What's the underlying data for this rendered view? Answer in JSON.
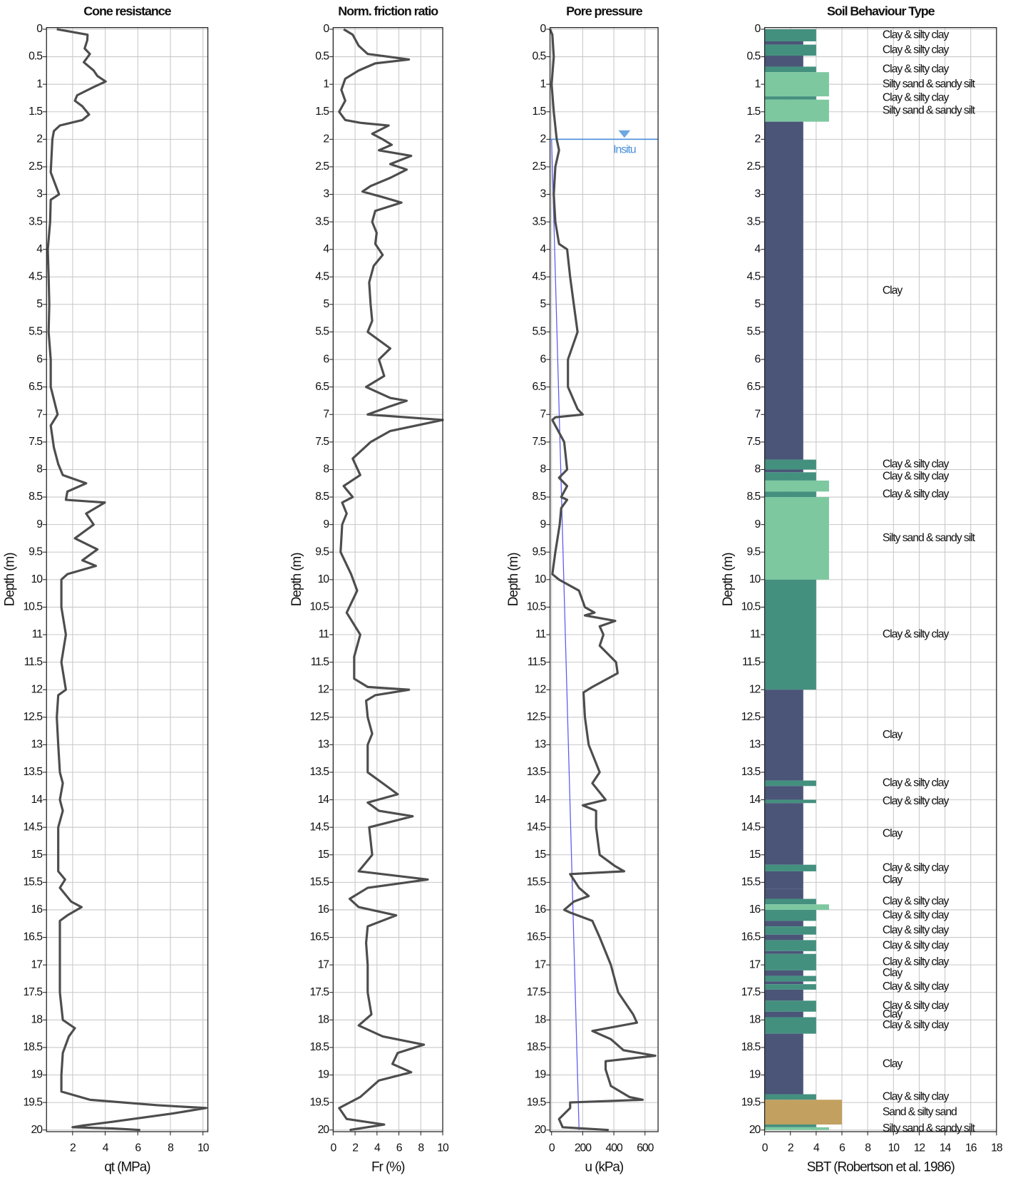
{
  "chart_data": [
    {
      "type": "line",
      "title": "Cone resistance",
      "xlabel": "qt (MPa)",
      "ylabel": "Depth (m)",
      "xlim": [
        0.4,
        10.3
      ],
      "xticks": [
        2,
        4,
        6,
        8,
        10
      ],
      "ylim": [
        -0.03,
        20.03
      ],
      "y_inverted": true,
      "yticks": [
        0,
        0.5,
        1,
        1.5,
        2,
        2.5,
        3,
        3.5,
        4,
        4.5,
        5,
        5.5,
        6,
        6.5,
        7,
        7.5,
        8,
        8.5,
        9,
        9.5,
        10,
        10.5,
        11,
        11.5,
        12,
        12.5,
        13,
        13.5,
        14,
        14.5,
        15,
        15.5,
        16,
        16.5,
        17,
        17.5,
        18,
        18.5,
        19,
        19.5,
        20
      ],
      "grid": true,
      "color": "#4d4d4d",
      "depth": [
        0,
        0.1,
        0.2,
        0.35,
        0.45,
        0.6,
        0.75,
        0.85,
        0.95,
        1.05,
        1.2,
        1.3,
        1.4,
        1.55,
        1.65,
        1.75,
        1.85,
        2.0,
        2.3,
        2.6,
        3.0,
        3.1,
        3.5,
        4.0,
        4.5,
        5.0,
        5.5,
        6.0,
        6.5,
        7.0,
        7.2,
        7.6,
        7.9,
        8.1,
        8.25,
        8.4,
        8.55,
        8.6,
        8.8,
        9.0,
        9.25,
        9.45,
        9.65,
        9.75,
        9.9,
        10.0,
        10.5,
        11.0,
        11.5,
        12.0,
        12.1,
        12.5,
        13.0,
        13.5,
        13.7,
        14.0,
        14.2,
        14.5,
        15.0,
        15.3,
        15.45,
        15.6,
        15.85,
        15.95,
        16.1,
        16.2,
        16.5,
        17.0,
        17.5,
        18.0,
        18.15,
        18.3,
        18.6,
        19.0,
        19.3,
        19.45,
        19.55,
        19.6,
        19.7,
        19.85,
        19.92,
        19.95,
        19.97,
        20.0
      ],
      "values": [
        1.03,
        2.92,
        2.9,
        2.74,
        3.06,
        2.69,
        3.29,
        3.52,
        4.03,
        3.29,
        2.28,
        2.14,
        2.6,
        3.01,
        2.6,
        1.22,
        0.85,
        0.76,
        0.71,
        0.66,
        1.17,
        0.66,
        0.62,
        0.48,
        0.53,
        0.57,
        0.53,
        0.66,
        0.66,
        1.08,
        0.66,
        0.85,
        1.12,
        1.4,
        2.83,
        1.68,
        1.59,
        3.98,
        2.83,
        3.29,
        2.14,
        3.52,
        2.6,
        3.43,
        1.68,
        1.31,
        1.31,
        1.59,
        1.31,
        1.59,
        1.12,
        1.03,
        1.12,
        1.22,
        1.4,
        1.22,
        1.4,
        1.12,
        1.12,
        1.12,
        1.54,
        1.22,
        1.91,
        2.55,
        1.68,
        1.22,
        1.22,
        1.22,
        1.22,
        1.4,
        2.14,
        1.77,
        1.4,
        1.31,
        1.31,
        3.06,
        7.21,
        10.2,
        8.13,
        4.44,
        2.6,
        2.0,
        4.44,
        6.15
      ]
    },
    {
      "type": "line",
      "title": "Norm. friction ratio",
      "xlabel": "Fr (%)",
      "ylabel": "Depth (m)",
      "xlim": [
        0,
        10
      ],
      "xticks": [
        0,
        2,
        4,
        6,
        8,
        10
      ],
      "ylim": [
        -0.03,
        20.03
      ],
      "y_inverted": true,
      "yticks": [
        0,
        0.5,
        1,
        1.5,
        2,
        2.5,
        3,
        3.5,
        4,
        4.5,
        5,
        5.5,
        6,
        6.5,
        7,
        7.5,
        8,
        8.5,
        9,
        9.5,
        10,
        10.5,
        11,
        11.5,
        12,
        12.5,
        13,
        13.5,
        14,
        14.5,
        15,
        15.5,
        16,
        16.5,
        17,
        17.5,
        18,
        18.5,
        19,
        19.5,
        20
      ],
      "grid": true,
      "color": "#4d4d4d",
      "depth": [
        0,
        0.1,
        0.3,
        0.45,
        0.5,
        0.55,
        0.62,
        0.75,
        0.9,
        1.1,
        1.3,
        1.5,
        1.65,
        1.7,
        1.75,
        1.9,
        2.0,
        2.1,
        2.2,
        2.3,
        2.45,
        2.55,
        2.7,
        2.85,
        2.95,
        3.05,
        3.15,
        3.3,
        3.5,
        3.7,
        3.9,
        4.1,
        4.3,
        4.6,
        5.0,
        5.3,
        5.5,
        5.8,
        6.0,
        6.3,
        6.5,
        6.7,
        6.75,
        6.85,
        7.0,
        7.03,
        7.1,
        7.3,
        7.5,
        7.8,
        8.1,
        8.3,
        8.5,
        8.6,
        8.8,
        9.0,
        9.5,
        9.9,
        10.2,
        10.6,
        11.0,
        11.4,
        11.8,
        11.95,
        12.0,
        12.1,
        12.2,
        12.5,
        12.8,
        13.0,
        13.5,
        13.7,
        13.9,
        14.05,
        14.2,
        14.3,
        14.5,
        15.0,
        15.3,
        15.45,
        15.6,
        15.8,
        15.95,
        16.1,
        16.3,
        16.6,
        17.0,
        17.5,
        17.9,
        18.1,
        18.3,
        18.45,
        18.6,
        18.8,
        18.95,
        19.1,
        19.4,
        19.6,
        19.8,
        19.9,
        20.0
      ],
      "values": [
        0.96,
        1.78,
        2.33,
        3.15,
        5.07,
        6.92,
        3.84,
        2.33,
        1.1,
        0.75,
        1.1,
        0.55,
        1.1,
        2.47,
        5.07,
        3.56,
        4.52,
        5.34,
        4.18,
        7.12,
        5.21,
        6.71,
        5.21,
        3.42,
        2.67,
        4.52,
        6.23,
        3.84,
        3.56,
        3.97,
        3.84,
        4.52,
        3.7,
        3.29,
        3.42,
        3.56,
        3.15,
        5.21,
        4.18,
        4.66,
        3.01,
        5.21,
        6.71,
        5.21,
        3.15,
        5.21,
        10,
        5.21,
        3.42,
        1.78,
        2.47,
        0.96,
        1.78,
        0.82,
        1.23,
        0.82,
        0.68,
        1.64,
        2.19,
        1.23,
        2.47,
        1.92,
        1.92,
        3.15,
        6.92,
        3.84,
        3.01,
        3.15,
        3.56,
        3.15,
        3.15,
        4.52,
        5.89,
        3.15,
        4.18,
        7.26,
        3.29,
        3.56,
        2.33,
        8.63,
        3.15,
        1.51,
        2.33,
        5.75,
        3.15,
        3.01,
        3.15,
        3.15,
        3.49,
        2.33,
        4.52,
        8.29,
        5.89,
        5.41,
        7.12,
        4.18,
        2.47,
        0.55,
        1.23,
        4.66,
        1.51
      ]
    },
    {
      "type": "line",
      "title": "Pore pressure",
      "xlabel": "u (kPa)",
      "ylabel": "Depth (m)",
      "xlim": [
        -10,
        684
      ],
      "xticks": [
        0,
        200,
        400,
        600
      ],
      "ylim": [
        -0.03,
        20.03
      ],
      "y_inverted": true,
      "yticks": [
        0,
        0.5,
        1,
        1.5,
        2,
        2.5,
        3,
        3.5,
        4,
        4.5,
        5,
        5.5,
        6,
        6.5,
        7,
        7.5,
        8,
        8.5,
        9,
        9.5,
        10,
        10.5,
        11,
        11.5,
        12,
        12.5,
        13,
        13.5,
        14,
        14.5,
        15,
        15.5,
        16,
        16.5,
        17,
        17.5,
        18,
        18.5,
        19,
        19.5,
        20
      ],
      "grid": true,
      "color": "#4d4d4d",
      "depth": [
        0,
        0.1,
        0.5,
        1.0,
        1.5,
        2.0,
        2.2,
        2.5,
        3.0,
        3.5,
        3.9,
        4.0,
        4.5,
        5.0,
        5.5,
        6.0,
        6.5,
        6.9,
        7.0,
        7.05,
        7.1,
        7.5,
        8.0,
        8.15,
        8.3,
        8.5,
        8.55,
        8.7,
        9.0,
        9.5,
        9.9,
        10.0,
        10.2,
        10.5,
        10.6,
        10.65,
        10.75,
        10.85,
        11.0,
        11.2,
        11.5,
        11.7,
        11.95,
        12.05,
        12.5,
        13.0,
        13.5,
        13.7,
        14.0,
        14.1,
        14.2,
        14.5,
        15.0,
        15.2,
        15.3,
        15.35,
        15.6,
        15.75,
        15.85,
        16.0,
        16.05,
        16.2,
        16.5,
        17.0,
        17.5,
        17.9,
        18.05,
        18.2,
        18.35,
        18.55,
        18.65,
        18.75,
        18.9,
        19.2,
        19.4,
        19.45,
        19.5,
        19.6,
        19.8,
        19.95,
        20.0
      ],
      "values": [
        -10,
        5,
        14,
        0,
        14,
        33,
        48,
        24,
        14,
        24,
        48,
        100,
        119,
        143,
        167,
        105,
        105,
        167,
        200,
        24,
        5,
        81,
        100,
        48,
        100,
        62,
        100,
        62,
        52,
        24,
        5,
        48,
        176,
        214,
        276,
        214,
        409,
        309,
        333,
        309,
        414,
        424,
        262,
        205,
        214,
        238,
        309,
        262,
        347,
        200,
        286,
        286,
        309,
        405,
        466,
        119,
        176,
        238,
        143,
        81,
        119,
        262,
        309,
        381,
        428,
        524,
        548,
        262,
        381,
        462,
        666,
        347,
        347,
        381,
        500,
        585,
        119,
        119,
        48,
        71,
        367
      ],
      "hydrostatic": {
        "depth": [
          2,
          20
        ],
        "values": [
          0,
          176.6
        ],
        "color": "#5b5bf0"
      },
      "water_table": {
        "depth": 2,
        "label": "Insitu",
        "color": "#4a90d9"
      }
    },
    {
      "type": "bar",
      "title": "Soil Behaviour Type",
      "xlabel": "SBT (Robertson et al. 1986)",
      "ylabel": "Depth (m)",
      "xlim": [
        0,
        18
      ],
      "xticks": [
        0,
        2,
        4,
        6,
        8,
        10,
        12,
        14,
        16,
        18
      ],
      "ylim": [
        -0.03,
        20.03
      ],
      "y_inverted": true,
      "yticks": [
        0,
        0.5,
        1,
        1.5,
        2,
        2.5,
        3,
        3.5,
        4,
        4.5,
        5,
        5.5,
        6,
        6.5,
        7,
        7.5,
        8,
        8.5,
        9,
        9.5,
        10,
        10.5,
        11,
        11.5,
        12,
        12.5,
        13,
        13.5,
        14,
        14.5,
        15,
        15.5,
        16,
        16.5,
        17,
        17.5,
        18,
        18.5,
        19,
        19.5,
        20
      ],
      "grid": true,
      "zone_colors": {
        "3": "#4a5578",
        "4": "#44907f",
        "5": "#7ec8a0",
        "6": "#c2a060"
      },
      "layers": {
        "top": [
          0,
          0.22,
          0.28,
          0.48,
          0.68,
          0.78,
          1.22,
          1.28,
          1.68,
          7.82,
          8.0,
          8.05,
          8.2,
          8.4,
          8.5,
          10.0,
          12.0,
          13.65,
          13.75,
          14.0,
          14.06,
          15.18,
          15.3,
          15.62,
          15.8,
          15.9,
          16.0,
          16.2,
          16.3,
          16.45,
          16.55,
          16.75,
          16.8,
          17.1,
          17.2,
          17.3,
          17.35,
          17.45,
          17.65,
          17.85,
          17.95,
          18.25,
          19.35,
          19.45,
          19.9,
          19.95
        ],
        "bottom": [
          0.22,
          0.28,
          0.48,
          0.68,
          0.78,
          1.22,
          1.28,
          1.68,
          7.82,
          8.0,
          8.05,
          8.2,
          8.4,
          8.5,
          10.0,
          12.0,
          13.65,
          13.75,
          14.0,
          14.06,
          15.18,
          15.3,
          15.62,
          15.8,
          15.9,
          16.0,
          16.2,
          16.3,
          16.45,
          16.55,
          16.75,
          16.8,
          17.1,
          17.2,
          17.3,
          17.35,
          17.45,
          17.65,
          17.85,
          17.95,
          18.25,
          19.35,
          19.45,
          19.9,
          19.95,
          20.0
        ],
        "values": [
          4,
          3,
          4,
          3,
          4,
          5,
          4,
          5,
          3,
          4,
          3,
          4,
          5,
          4,
          5,
          4,
          3,
          4,
          3,
          4,
          3,
          4,
          3,
          3,
          4,
          5,
          4,
          3,
          4,
          3,
          4,
          3,
          4,
          3,
          4,
          3,
          4,
          3,
          4,
          3,
          4,
          3,
          4,
          6,
          4,
          5
        ],
        "labels": [
          "Clay & silty clay",
          null,
          "Clay & silty clay",
          null,
          "Clay & silty clay",
          "Silty sand & sandy silt",
          "Clay & silty clay",
          "Silty sand & sandy silt",
          "Clay",
          "Clay & silty clay",
          null,
          "Clay & silty clay",
          null,
          "Clay & silty clay",
          "Silty sand & sandy silt",
          "Clay & silty clay",
          "Clay",
          "Clay & silty clay",
          null,
          "Clay & silty clay",
          "Clay",
          "Clay & silty clay",
          "Clay",
          null,
          "Clay & silty clay",
          null,
          "Clay & silty clay",
          null,
          "Clay & silty clay",
          null,
          "Clay & silty clay",
          null,
          "Clay & silty clay",
          "Clay",
          null,
          null,
          "Clay & silty clay",
          null,
          "Clay & silty clay",
          "Clay",
          "Clay & silty clay",
          "Clay",
          "Clay & silty clay",
          "Sand & silty sand",
          null,
          "Silty sand & sandy silt"
        ]
      }
    }
  ]
}
